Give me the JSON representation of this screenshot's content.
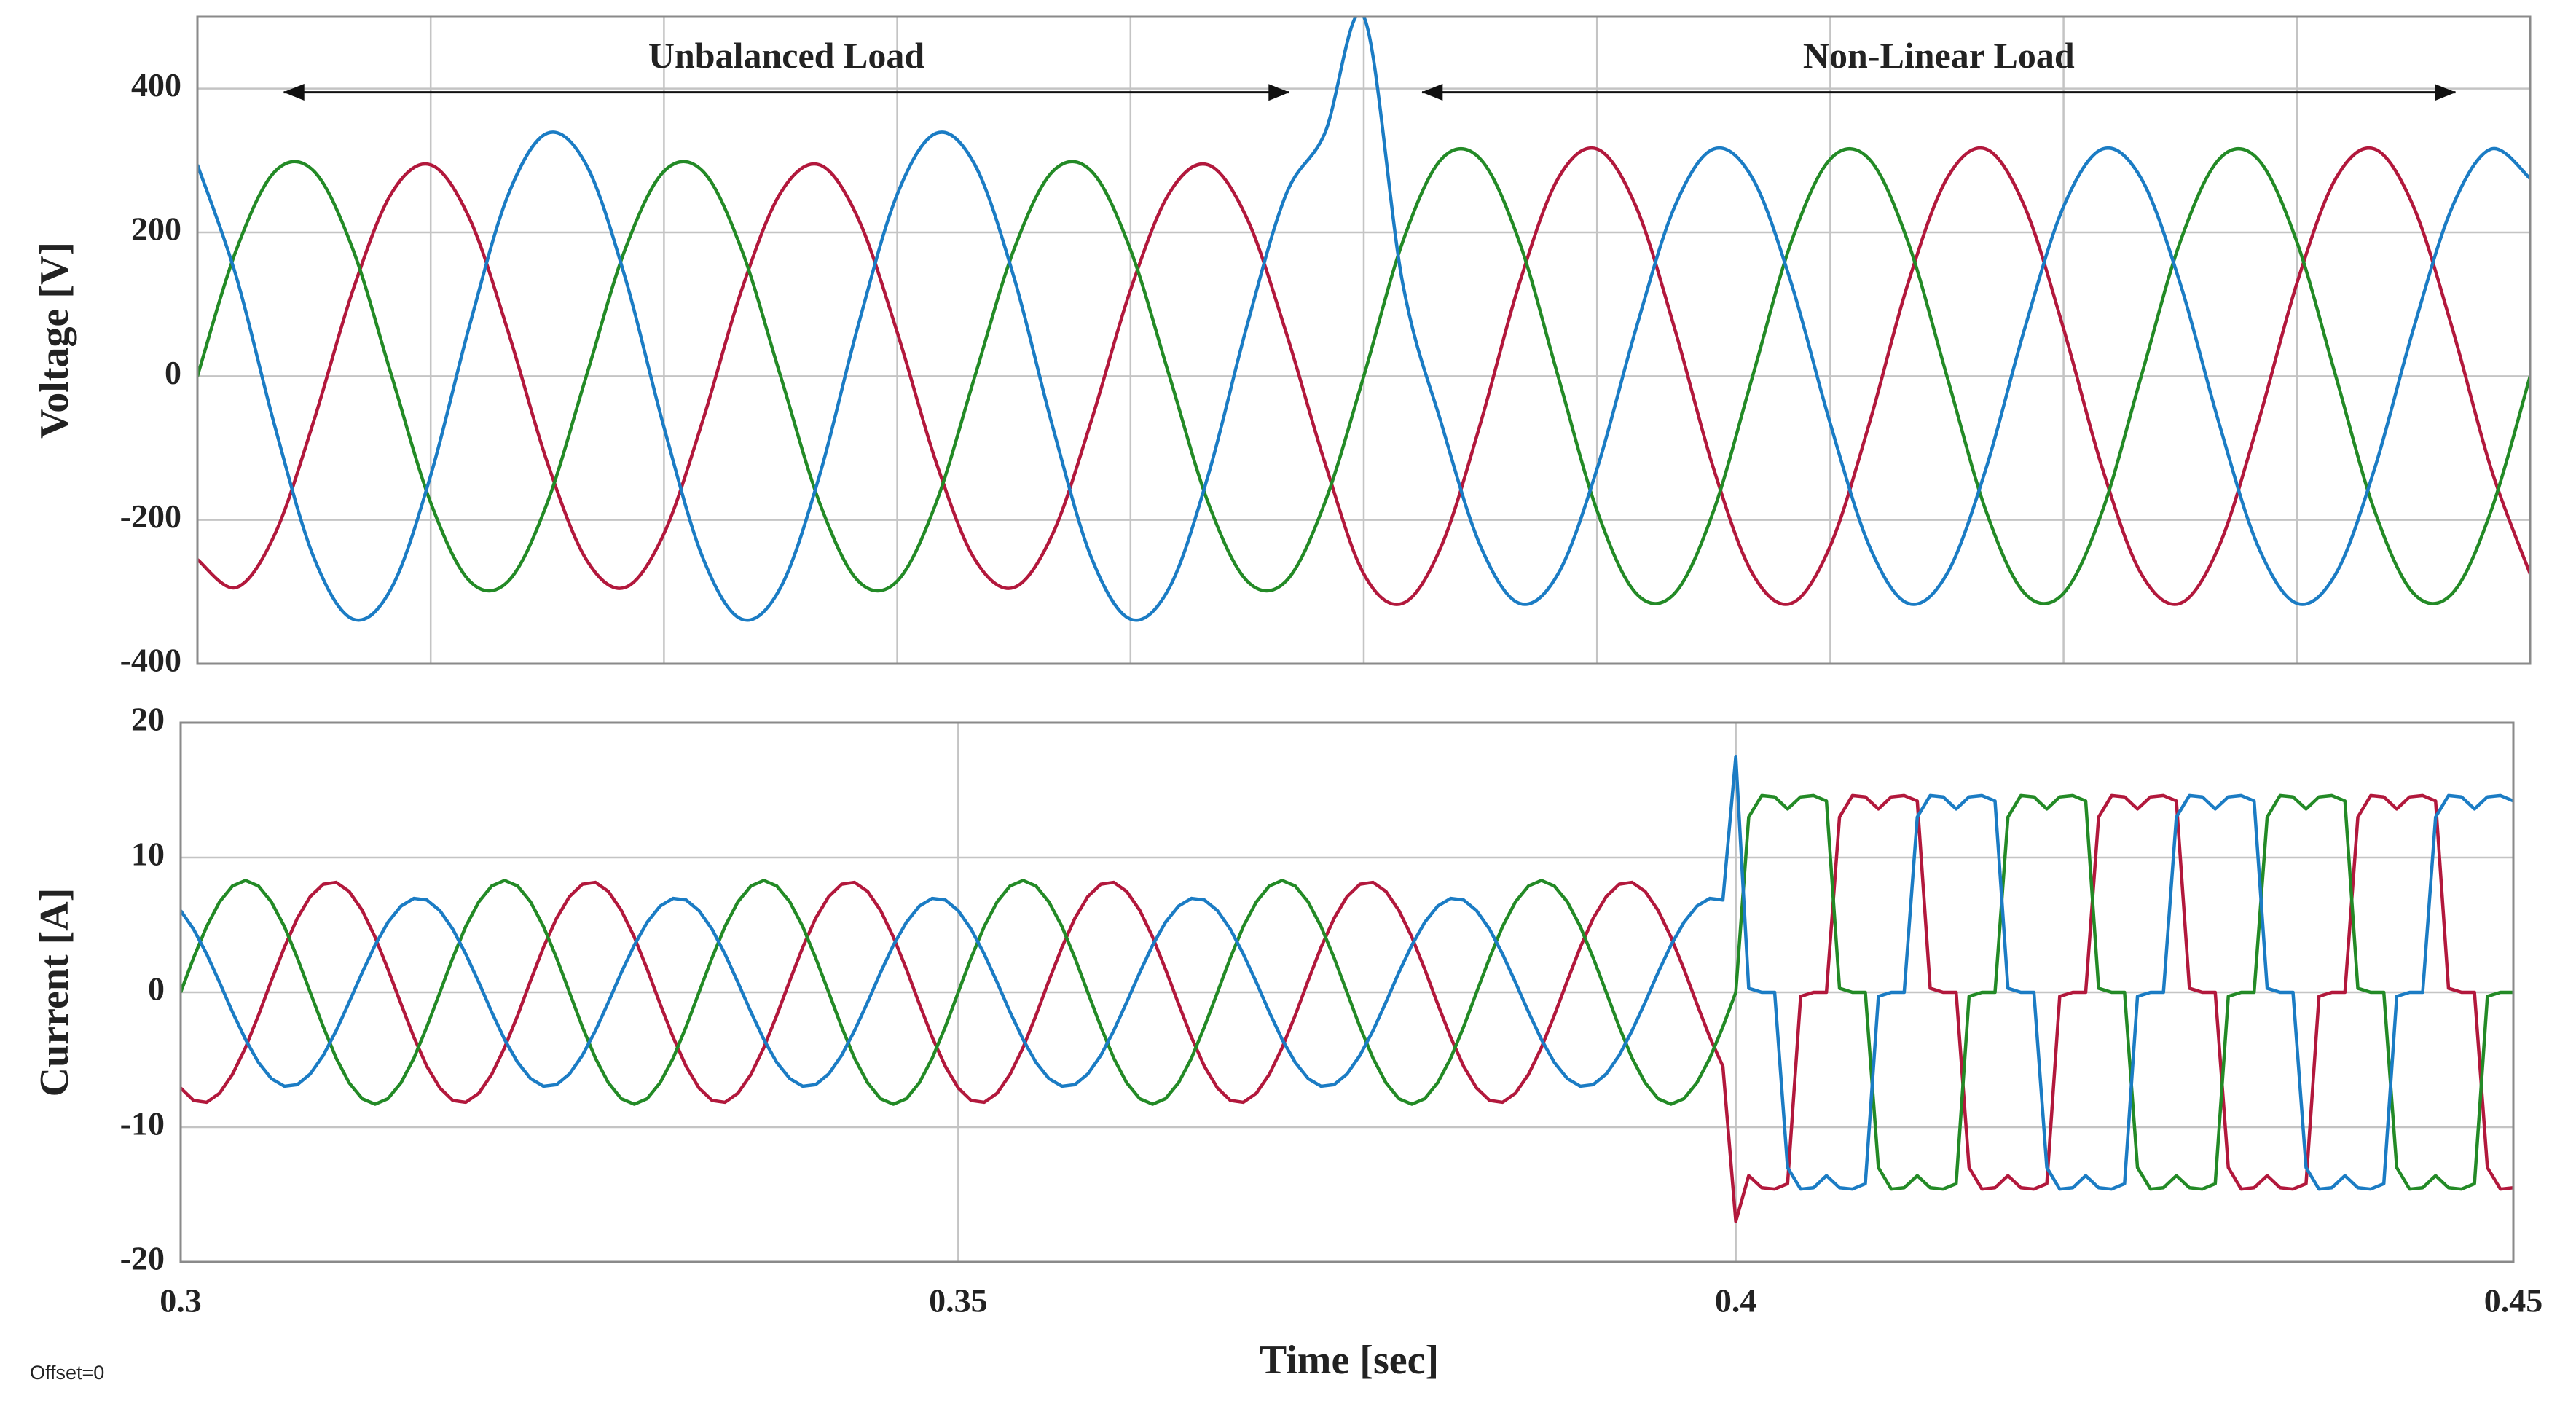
{
  "chart_data": [
    {
      "type": "line",
      "ylabel": "Voltage [V]",
      "xlim": [
        0.35,
        0.45
      ],
      "ylim": [
        -400,
        500
      ],
      "xticks": [
        0.35,
        0.36,
        0.37,
        0.38,
        0.39,
        0.4,
        0.41,
        0.42,
        0.43,
        0.44,
        0.45
      ],
      "xtick_labels": false,
      "yticks": [
        -400,
        -200,
        0,
        200,
        400
      ],
      "grid": true,
      "smooth": true,
      "annotations": [
        {
          "text": "Unbalanced Load",
          "x": [
            0.3537,
            0.3968
          ],
          "y": 395
        },
        {
          "text": "Non-Linear Load",
          "x": [
            0.4025,
            0.4468
          ],
          "y": 395
        }
      ],
      "x": [
        0.35,
        0.35167,
        0.35333,
        0.355,
        0.35667,
        0.35833,
        0.36,
        0.36167,
        0.36333,
        0.365,
        0.36667,
        0.36833,
        0.37,
        0.37167,
        0.37333,
        0.375,
        0.37667,
        0.37833,
        0.38,
        0.38167,
        0.38333,
        0.385,
        0.38667,
        0.38833,
        0.39,
        0.39167,
        0.39333,
        0.395,
        0.39667,
        0.39833,
        0.4,
        0.40167,
        0.40333,
        0.405,
        0.40667,
        0.40833,
        0.41,
        0.41167,
        0.41333,
        0.415,
        0.41667,
        0.41833,
        0.42,
        0.42167,
        0.42333,
        0.425,
        0.42667,
        0.42833,
        0.43,
        0.43167,
        0.43333,
        0.435,
        0.43667,
        0.43833,
        0.44,
        0.44167,
        0.44333,
        0.445,
        0.44667,
        0.44833,
        0.45
      ],
      "series": [
        {
          "color": "#b2183c",
          "values": [
            -255,
            -294,
            -219,
            -61,
            120,
            255,
            294,
            219,
            61,
            -120,
            -255,
            -294,
            -219,
            -61,
            120,
            255,
            294,
            219,
            61,
            -120,
            -255,
            -294,
            -219,
            -61,
            120,
            255,
            294,
            219,
            61,
            -120,
            -275,
            -316,
            -236,
            -66,
            129,
            275,
            316,
            236,
            66,
            -129,
            -275,
            -316,
            -236,
            -66,
            129,
            275,
            316,
            236,
            66,
            -129,
            -275,
            -316,
            -236,
            -66,
            129,
            275,
            316,
            236,
            66,
            -129,
            -275
          ]
        },
        {
          "color": "#238a26",
          "values": [
            0,
            176,
            285,
            285,
            176,
            0,
            -176,
            -285,
            -285,
            -176,
            0,
            176,
            285,
            285,
            176,
            0,
            -176,
            -285,
            -285,
            -176,
            0,
            176,
            285,
            285,
            176,
            0,
            -176,
            -285,
            -285,
            -176,
            0,
            187,
            302,
            302,
            187,
            0,
            -187,
            -302,
            -302,
            -187,
            0,
            187,
            302,
            302,
            187,
            0,
            -187,
            -302,
            -302,
            -187,
            0,
            187,
            302,
            302,
            187,
            0,
            -187,
            -302,
            -302,
            -187,
            0
          ]
        },
        {
          "color": "#1b7cc4",
          "values": [
            294,
            138,
            -71,
            -253,
            -338,
            -294,
            -138,
            71,
            253,
            338,
            294,
            138,
            -71,
            -253,
            -338,
            -294,
            -138,
            71,
            253,
            338,
            294,
            138,
            -71,
            -253,
            -338,
            -294,
            -138,
            71,
            253,
            338,
            500,
            129,
            -66,
            -236,
            -316,
            -275,
            -129,
            66,
            236,
            316,
            275,
            129,
            -66,
            -236,
            -316,
            -275,
            -129,
            66,
            236,
            316,
            275,
            129,
            -66,
            -236,
            -316,
            -275,
            -129,
            66,
            236,
            316,
            275
          ]
        }
      ]
    },
    {
      "type": "line",
      "ylabel": "Current [A]",
      "xlabel": "Time [sec]",
      "note": "Offset=0",
      "xlim": [
        0.3,
        0.45
      ],
      "ylim": [
        -20,
        20
      ],
      "xticks": [
        0.3,
        0.35,
        0.4,
        0.45
      ],
      "yticks": [
        -20,
        -10,
        0,
        10,
        20
      ],
      "grid": true,
      "smooth": false,
      "x": [
        0.3,
        0.30083,
        0.30167,
        0.3025,
        0.30333,
        0.30417,
        0.305,
        0.30583,
        0.30667,
        0.3075,
        0.30833,
        0.30917,
        0.31,
        0.31083,
        0.31167,
        0.3125,
        0.31333,
        0.31417,
        0.315,
        0.31583,
        0.31667,
        0.3175,
        0.31833,
        0.31917,
        0.32,
        0.32083,
        0.32167,
        0.3225,
        0.32333,
        0.32417,
        0.325,
        0.32583,
        0.32667,
        0.3275,
        0.32833,
        0.32917,
        0.33,
        0.33083,
        0.33167,
        0.3325,
        0.33333,
        0.33417,
        0.335,
        0.33583,
        0.33667,
        0.3375,
        0.33833,
        0.33917,
        0.34,
        0.34083,
        0.34167,
        0.3425,
        0.34333,
        0.34417,
        0.345,
        0.34583,
        0.34667,
        0.3475,
        0.34833,
        0.34917,
        0.35,
        0.35083,
        0.35167,
        0.3525,
        0.35333,
        0.35417,
        0.355,
        0.35583,
        0.35667,
        0.3575,
        0.35833,
        0.35917,
        0.36,
        0.36083,
        0.36167,
        0.3625,
        0.36333,
        0.36417,
        0.365,
        0.36583,
        0.36667,
        0.3675,
        0.36833,
        0.36917,
        0.37,
        0.37083,
        0.37167,
        0.3725,
        0.37333,
        0.37417,
        0.375,
        0.37583,
        0.37667,
        0.3775,
        0.37833,
        0.37917,
        0.38,
        0.38083,
        0.38167,
        0.3825,
        0.38333,
        0.38417,
        0.385,
        0.38583,
        0.38667,
        0.3875,
        0.38833,
        0.38917,
        0.39,
        0.39083,
        0.39167,
        0.3925,
        0.39333,
        0.39417,
        0.395,
        0.39583,
        0.39667,
        0.3975,
        0.39833,
        0.39917,
        0.4,
        0.40083,
        0.40167,
        0.4025,
        0.40333,
        0.40417,
        0.405,
        0.40583,
        0.40667,
        0.4075,
        0.40833,
        0.40917,
        0.41,
        0.41083,
        0.41167,
        0.4125,
        0.41333,
        0.41417,
        0.415,
        0.41583,
        0.41667,
        0.4175,
        0.41833,
        0.41917,
        0.42,
        0.42083,
        0.42167,
        0.4225,
        0.42333,
        0.42417,
        0.425,
        0.42583,
        0.42667,
        0.4275,
        0.42833,
        0.42917,
        0.43,
        0.43083,
        0.43167,
        0.4325,
        0.43333,
        0.43417,
        0.435,
        0.43583,
        0.43667,
        0.4375,
        0.43833,
        0.43917,
        0.44,
        0.44083,
        0.44167,
        0.4425,
        0.44333,
        0.44417,
        0.445,
        0.44583,
        0.44667,
        0.4475,
        0.44833,
        0.44917,
        0.45
      ],
      "series": [
        {
          "color": "#b2183c",
          "values": [
            -7.1,
            -8.02,
            -8.16,
            -7.49,
            -6.09,
            -4.1,
            -1.71,
            0.86,
            3.34,
            5.49,
            7.1,
            8.02,
            8.16,
            7.49,
            6.09,
            4.1,
            1.71,
            -0.86,
            -3.34,
            -5.49,
            -7.1,
            -8.02,
            -8.16,
            -7.49,
            -6.09,
            -4.1,
            -1.71,
            0.86,
            3.34,
            5.49,
            7.1,
            8.02,
            8.16,
            7.49,
            6.09,
            4.1,
            1.71,
            -0.86,
            -3.34,
            -5.49,
            -7.1,
            -8.02,
            -8.16,
            -7.49,
            -6.09,
            -4.1,
            -1.71,
            0.86,
            3.34,
            5.49,
            7.1,
            8.02,
            8.16,
            7.49,
            6.09,
            4.1,
            1.71,
            -0.86,
            -3.34,
            -5.49,
            -7.1,
            -8.02,
            -8.16,
            -7.49,
            -6.09,
            -4.1,
            -1.71,
            0.86,
            3.34,
            5.49,
            7.1,
            8.02,
            8.16,
            7.49,
            6.09,
            4.1,
            1.71,
            -0.86,
            -3.34,
            -5.49,
            -7.1,
            -8.02,
            -8.16,
            -7.49,
            -6.09,
            -4.1,
            -1.71,
            0.86,
            3.34,
            5.49,
            7.1,
            8.02,
            8.16,
            7.49,
            6.09,
            4.1,
            1.71,
            -0.86,
            -3.34,
            -5.49,
            -7.1,
            -8.02,
            -8.16,
            -7.49,
            -6.09,
            -4.1,
            -1.71,
            0.86,
            3.34,
            5.49,
            7.1,
            8.02,
            8.16,
            7.49,
            6.09,
            4.1,
            1.71,
            -0.86,
            -3.34,
            -5.49,
            -17,
            -13.6,
            -14.5,
            -14.6,
            -14.2,
            -0.3,
            0,
            0,
            13,
            14.6,
            14.5,
            13.6,
            14.5,
            14.6,
            14.2,
            0.3,
            0,
            0,
            -13,
            -14.6,
            -14.5,
            -13.6,
            -14.5,
            -14.6,
            -14.2,
            -0.3,
            0,
            0,
            13,
            14.6,
            14.5,
            13.6,
            14.5,
            14.6,
            14.2,
            0.3,
            0,
            0,
            -13,
            -14.6,
            -14.5,
            -13.6,
            -14.5,
            -14.6,
            -14.2,
            -0.3,
            0,
            0,
            13,
            14.6,
            14.5,
            13.6,
            14.5,
            14.6,
            14.2,
            0.3,
            0,
            0,
            -13,
            -14.6,
            -14.5
          ]
        },
        {
          "color": "#238a26",
          "values": [
            0,
            2.56,
            4.88,
            6.71,
            7.89,
            8.3,
            7.89,
            6.71,
            4.88,
            2.56,
            0,
            -2.56,
            -4.88,
            -6.71,
            -7.89,
            -8.3,
            -7.89,
            -6.71,
            -4.88,
            -2.56,
            0,
            2.56,
            4.88,
            6.71,
            7.89,
            8.3,
            7.89,
            6.71,
            4.88,
            2.56,
            0,
            -2.56,
            -4.88,
            -6.71,
            -7.89,
            -8.3,
            -7.89,
            -6.71,
            -4.88,
            -2.56,
            0,
            2.56,
            4.88,
            6.71,
            7.89,
            8.3,
            7.89,
            6.71,
            4.88,
            2.56,
            0,
            -2.56,
            -4.88,
            -6.71,
            -7.89,
            -8.3,
            -7.89,
            -6.71,
            -4.88,
            -2.56,
            0,
            2.56,
            4.88,
            6.71,
            7.89,
            8.3,
            7.89,
            6.71,
            4.88,
            2.56,
            0,
            -2.56,
            -4.88,
            -6.71,
            -7.89,
            -8.3,
            -7.89,
            -6.71,
            -4.88,
            -2.56,
            0,
            2.56,
            4.88,
            6.71,
            7.89,
            8.3,
            7.89,
            6.71,
            4.88,
            2.56,
            0,
            -2.56,
            -4.88,
            -6.71,
            -7.89,
            -8.3,
            -7.89,
            -6.71,
            -4.88,
            -2.56,
            0,
            2.56,
            4.88,
            6.71,
            7.89,
            8.3,
            7.89,
            6.71,
            4.88,
            2.56,
            0,
            -2.56,
            -4.88,
            -6.71,
            -7.89,
            -8.3,
            -7.89,
            -6.71,
            -4.88,
            -2.56,
            0,
            13,
            14.6,
            14.5,
            13.6,
            14.5,
            14.6,
            14.2,
            0.3,
            0,
            0,
            -13,
            -14.6,
            -14.5,
            -13.6,
            -14.5,
            -14.6,
            -14.2,
            -0.3,
            0,
            0,
            13,
            14.6,
            14.5,
            13.6,
            14.5,
            14.6,
            14.2,
            0.3,
            0,
            0,
            -13,
            -14.6,
            -14.5,
            -13.6,
            -14.5,
            -14.6,
            -14.2,
            -0.3,
            0,
            0,
            13,
            14.6,
            14.5,
            13.6,
            14.5,
            14.6,
            14.2,
            0.3,
            0,
            0,
            -13,
            -14.6,
            -14.5,
            -13.6,
            -14.5,
            -14.6,
            -14.2,
            -0.3,
            0,
            0
          ]
        },
        {
          "color": "#1b7cc4",
          "values": [
            6.06,
            4.68,
            2.85,
            0.74,
            -1.46,
            -3.5,
            -5.2,
            -6.4,
            -6.97,
            -6.85,
            -6.06,
            -4.68,
            -2.85,
            -0.74,
            1.46,
            3.5,
            5.2,
            6.4,
            6.97,
            6.85,
            6.06,
            4.68,
            2.85,
            0.74,
            -1.46,
            -3.5,
            -5.2,
            -6.4,
            -6.97,
            -6.85,
            -6.06,
            -4.68,
            -2.85,
            -0.74,
            1.46,
            3.5,
            5.2,
            6.4,
            6.97,
            6.85,
            6.06,
            4.68,
            2.85,
            0.74,
            -1.46,
            -3.5,
            -5.2,
            -6.4,
            -6.97,
            -6.85,
            -6.06,
            -4.68,
            -2.85,
            -0.74,
            1.46,
            3.5,
            5.2,
            6.4,
            6.97,
            6.85,
            6.06,
            4.68,
            2.85,
            0.74,
            -1.46,
            -3.5,
            -5.2,
            -6.4,
            -6.97,
            -6.85,
            -6.06,
            -4.68,
            -2.85,
            -0.74,
            1.46,
            3.5,
            5.2,
            6.4,
            6.97,
            6.85,
            6.06,
            4.68,
            2.85,
            0.74,
            -1.46,
            -3.5,
            -5.2,
            -6.4,
            -6.97,
            -6.85,
            -6.06,
            -4.68,
            -2.85,
            -0.74,
            1.46,
            3.5,
            5.2,
            6.4,
            6.97,
            6.85,
            6.06,
            4.68,
            2.85,
            0.74,
            -1.46,
            -3.5,
            -5.2,
            -6.4,
            -6.97,
            -6.85,
            -6.06,
            -4.68,
            -2.85,
            -0.74,
            1.46,
            3.5,
            5.2,
            6.4,
            6.97,
            6.85,
            17.5,
            0.3,
            0,
            0,
            -13,
            -14.6,
            -14.5,
            -13.6,
            -14.5,
            -14.6,
            -14.2,
            -0.3,
            0,
            0,
            13,
            14.6,
            14.5,
            13.6,
            14.5,
            14.6,
            14.2,
            0.3,
            0,
            0,
            -13,
            -14.6,
            -14.5,
            -13.6,
            -14.5,
            -14.6,
            -14.2,
            -0.3,
            0,
            0,
            13,
            14.6,
            14.5,
            13.6,
            14.5,
            14.6,
            14.2,
            0.3,
            0,
            0,
            -13,
            -14.6,
            -14.5,
            -13.6,
            -14.5,
            -14.6,
            -14.2,
            -0.3,
            0,
            0,
            13,
            14.6,
            14.5,
            13.6,
            14.5,
            14.6,
            14.2
          ]
        }
      ]
    }
  ]
}
